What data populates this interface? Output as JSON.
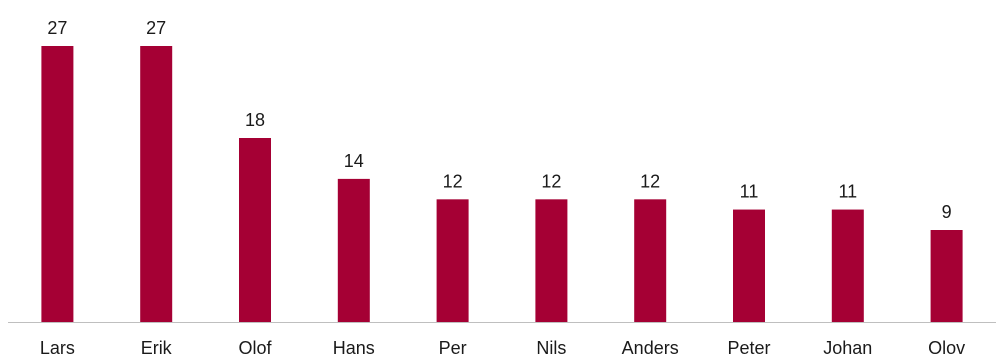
{
  "chart_data": {
    "type": "bar",
    "title": "",
    "xlabel": "",
    "ylabel": "",
    "categories": [
      "Lars",
      "Erik",
      "Olof",
      "Hans",
      "Per",
      "Nils",
      "Anders",
      "Peter",
      "Johan",
      "Olov"
    ],
    "values": [
      27,
      27,
      18,
      14,
      12,
      12,
      12,
      11,
      11,
      9
    ],
    "data_labels": [
      "27",
      "27",
      "18",
      "14",
      "12",
      "12",
      "12",
      "11",
      "11",
      "9"
    ],
    "ylim": [
      0,
      27
    ],
    "grid": false,
    "legend": "none",
    "bar_color": "#A50034",
    "axis_color": "#BFBFBF"
  }
}
